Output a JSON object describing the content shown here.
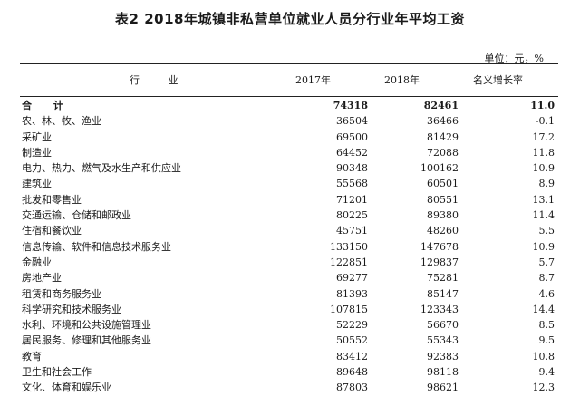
{
  "title": "表2  2018年城镇非私营单位就业人员分行业年平均工资",
  "unit": "单位：元，%",
  "headers": {
    "industry": "行 业",
    "y2017": "2017年",
    "y2018": "2018年",
    "growth": "名义增长率"
  },
  "rows": [
    {
      "name": "合 计",
      "y2017": "74318",
      "y2018": "82461",
      "growth": "11.0",
      "bold": true
    },
    {
      "name": "农、林、牧、渔业",
      "y2017": "36504",
      "y2018": "36466",
      "growth": "-0.1"
    },
    {
      "name": "采矿业",
      "y2017": "69500",
      "y2018": "81429",
      "growth": "17.2"
    },
    {
      "name": "制造业",
      "y2017": "64452",
      "y2018": "72088",
      "growth": "11.8"
    },
    {
      "name": "电力、热力、燃气及水生产和供应业",
      "y2017": "90348",
      "y2018": "100162",
      "growth": "10.9"
    },
    {
      "name": "建筑业",
      "y2017": "55568",
      "y2018": "60501",
      "growth": "8.9"
    },
    {
      "name": "批发和零售业",
      "y2017": "71201",
      "y2018": "80551",
      "growth": "13.1"
    },
    {
      "name": "交通运输、仓储和邮政业",
      "y2017": "80225",
      "y2018": "89380",
      "growth": "11.4"
    },
    {
      "name": "住宿和餐饮业",
      "y2017": "45751",
      "y2018": "48260",
      "growth": "5.5"
    },
    {
      "name": "信息传输、软件和信息技术服务业",
      "y2017": "133150",
      "y2018": "147678",
      "growth": "10.9"
    },
    {
      "name": "金融业",
      "y2017": "122851",
      "y2018": "129837",
      "growth": "5.7"
    },
    {
      "name": "房地产业",
      "y2017": "69277",
      "y2018": "75281",
      "growth": "8.7"
    },
    {
      "name": "租赁和商务服务业",
      "y2017": "81393",
      "y2018": "85147",
      "growth": "4.6"
    },
    {
      "name": "科学研究和技术服务业",
      "y2017": "107815",
      "y2018": "123343",
      "growth": "14.4"
    },
    {
      "name": "水利、环境和公共设施管理业",
      "y2017": "52229",
      "y2018": "56670",
      "growth": "8.5"
    },
    {
      "name": "居民服务、修理和其他服务业",
      "y2017": "50552",
      "y2018": "55343",
      "growth": "9.5"
    },
    {
      "name": "教育",
      "y2017": "83412",
      "y2018": "92383",
      "growth": "10.8"
    },
    {
      "name": "卫生和社会工作",
      "y2017": "89648",
      "y2018": "98118",
      "growth": "9.4"
    },
    {
      "name": "文化、体育和娱乐业",
      "y2017": "87803",
      "y2018": "98621",
      "growth": "12.3"
    }
  ]
}
